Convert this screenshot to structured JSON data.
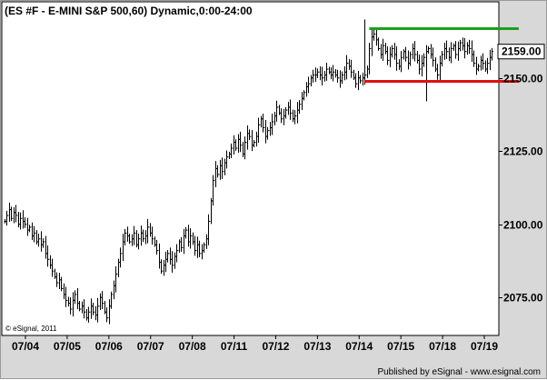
{
  "chart_data": {
    "type": "ohlc",
    "title": "(ES #F - E-MINI S&P 500,60) Dynamic,0:00-24:00",
    "watermark": "© eSignal, 2011",
    "x_labels": [
      "07/04",
      "07/05",
      "07/06",
      "07/07",
      "07/08",
      "07/11",
      "07/12",
      "07/13",
      "07/14",
      "07/15",
      "07/18",
      "07/19"
    ],
    "y_ticks": [
      2075,
      2100,
      2125,
      2150
    ],
    "y_tick_labels": [
      "2075.00",
      "2100.00",
      "2125.00",
      "2150.00"
    ],
    "ylim": [
      2062,
      2176
    ],
    "last_price": 2159.0,
    "last_price_label": "2159.00",
    "grid": false,
    "colors": {
      "plot_bg": "#ffffff",
      "panel_bg": "#d8d8d8",
      "bars": "#000000",
      "resistance": "#1e9e1e",
      "support": "#e01010",
      "price_box": "#ffffff"
    },
    "lines": [
      {
        "name": "resistance",
        "y": 2167,
        "from_bar": 161,
        "to_bar": 223,
        "color": "#1e9e1e"
      },
      {
        "name": "support",
        "y": 2149,
        "from_bar": 159,
        "to_bar": 223,
        "color": "#e01010"
      }
    ],
    "closes": [
      2101,
      2103,
      2105,
      2102,
      2104,
      2103,
      2100,
      2102,
      2101,
      2100,
      2098,
      2099,
      2096,
      2097,
      2094,
      2095,
      2093,
      2094,
      2090,
      2088,
      2086,
      2084,
      2082,
      2080,
      2081,
      2078,
      2076,
      2074,
      2073,
      2071,
      2074,
      2076,
      2073,
      2071,
      2072,
      2070,
      2068,
      2070,
      2072,
      2070,
      2069,
      2072,
      2075,
      2073,
      2070,
      2068,
      2072,
      2076,
      2079,
      2083,
      2087,
      2090,
      2094,
      2097,
      2096,
      2094,
      2095,
      2097,
      2093,
      2095,
      2097,
      2095,
      2096,
      2099,
      2097,
      2095,
      2093,
      2091,
      2087,
      2084,
      2086,
      2088,
      2090,
      2088,
      2086,
      2089,
      2091,
      2094,
      2092,
      2096,
      2098,
      2094,
      2096,
      2094,
      2091,
      2093,
      2090,
      2091,
      2093,
      2095,
      2101,
      2108,
      2115,
      2119,
      2117,
      2120,
      2118,
      2121,
      2123,
      2124,
      2126,
      2128,
      2126,
      2129,
      2127,
      2124,
      2128,
      2131,
      2130,
      2127,
      2128,
      2130,
      2134,
      2136,
      2133,
      2130,
      2132,
      2133,
      2135,
      2137,
      2140,
      2138,
      2136,
      2137,
      2139,
      2140,
      2138,
      2136,
      2137,
      2139,
      2141,
      2143,
      2145,
      2147,
      2148,
      2150,
      2151,
      2151,
      2152,
      2151,
      2150,
      2151,
      2153,
      2152,
      2151,
      2152,
      2151,
      2150,
      2149,
      2151,
      2152,
      2155,
      2154,
      2152,
      2150,
      2148,
      2150,
      2149,
      2150,
      2151,
      2153,
      2160,
      2164,
      2165,
      2163,
      2160,
      2158,
      2161,
      2159,
      2156,
      2158,
      2160,
      2158,
      2155,
      2154,
      2157,
      2159,
      2157,
      2155,
      2158,
      2160,
      2158,
      2156,
      2153,
      2155,
      2157,
      2159,
      2160,
      2158,
      2156,
      2153,
      2151,
      2155,
      2158,
      2160,
      2159,
      2157,
      2160,
      2161,
      2158,
      2160,
      2162,
      2161,
      2159,
      2161,
      2160,
      2158,
      2155,
      2153,
      2154,
      2156,
      2155,
      2153,
      2155,
      2157,
      2159
    ]
  },
  "footer": {
    "publisher": "Published by eSignal - www.esignal.com"
  }
}
